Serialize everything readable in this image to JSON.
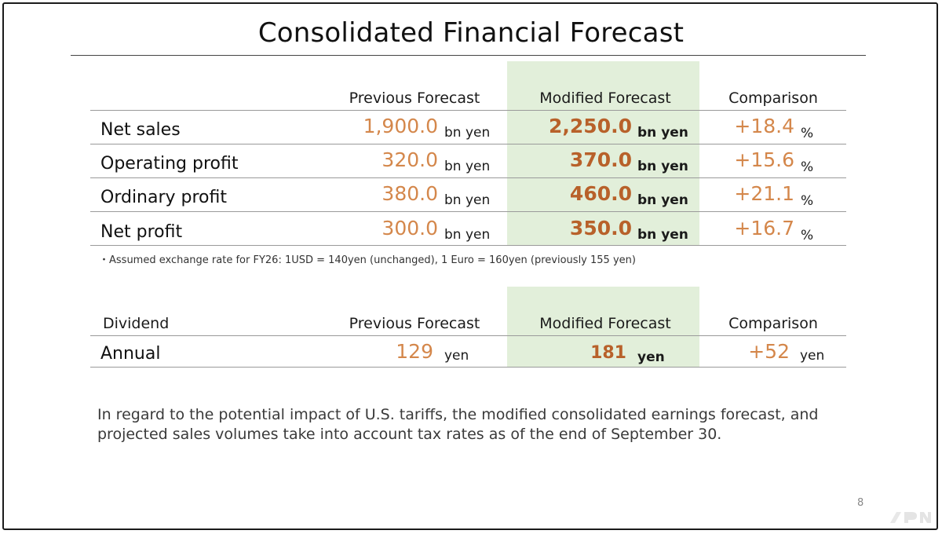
{
  "title": "Consolidated Financial Forecast",
  "forecast_table": {
    "headers": {
      "previous": "Previous Forecast",
      "modified": "Modified Forecast",
      "comparison": "Comparison"
    },
    "rows": [
      {
        "label": "Net sales",
        "previous": "1,900.0",
        "previous_unit": "bn yen",
        "modified": "2,250.0",
        "modified_unit": "bn yen",
        "comparison": "+18.4",
        "comparison_unit": "%"
      },
      {
        "label": "Operating profit",
        "previous": "320.0",
        "previous_unit": "bn yen",
        "modified": "370.0",
        "modified_unit": "bn yen",
        "comparison": "+15.6",
        "comparison_unit": "%"
      },
      {
        "label": "Ordinary profit",
        "previous": "380.0",
        "previous_unit": "bn yen",
        "modified": "460.0",
        "modified_unit": "bn yen",
        "comparison": "+21.1",
        "comparison_unit": "%"
      },
      {
        "label": "Net profit",
        "previous": "300.0",
        "previous_unit": "bn yen",
        "modified": "350.0",
        "modified_unit": "bn yen",
        "comparison": "+16.7",
        "comparison_unit": "%"
      }
    ],
    "note": "・Assumed exchange rate for FY26: 1USD = 140yen (unchanged), 1 Euro = 160yen (previously 155 yen)"
  },
  "dividend_table": {
    "headers": {
      "label": "Dividend",
      "previous": "Previous Forecast",
      "modified": "Modified Forecast",
      "comparison": "Comparison"
    },
    "row": {
      "label": "Annual",
      "previous": "129",
      "previous_unit": "yen",
      "modified": "181",
      "modified_unit": "yen",
      "comparison": "+52",
      "comparison_unit": "yen"
    }
  },
  "footnote": "In regard to the potential impact of U.S. tariffs, the modified consolidated earnings forecast, and projected sales volumes take into account tax rates as of the end of September 30.",
  "page_number": "8",
  "colors": {
    "value_orange": "#d4874b",
    "value_bold_orange": "#b8612a",
    "highlight_green": "#e2efda"
  }
}
